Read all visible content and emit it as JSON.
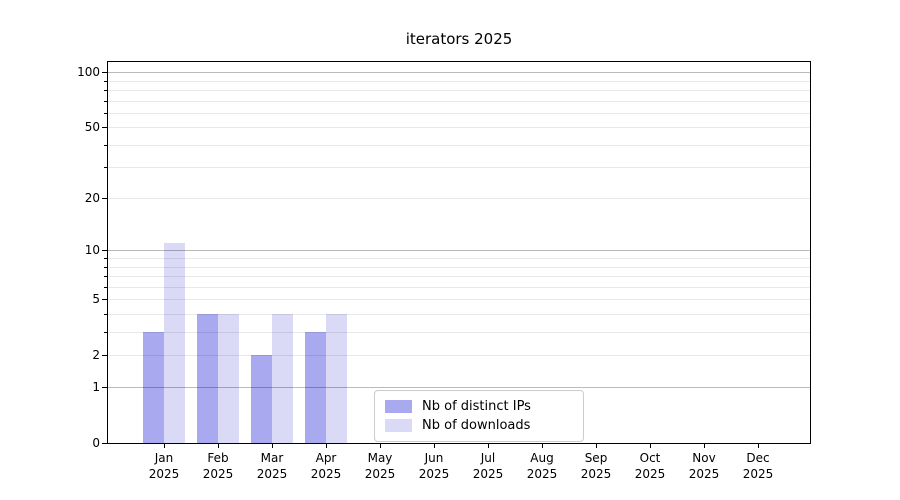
{
  "title": "iterators 2025",
  "legend": {
    "items": [
      {
        "label": "Nb of distinct IPs",
        "color": "#a9a9ef"
      },
      {
        "label": "Nb of downloads",
        "color": "#dadaf7"
      }
    ]
  },
  "chart_data": {
    "type": "bar",
    "title": "iterators 2025",
    "categories": [
      "Jan",
      "Feb",
      "Mar",
      "Apr",
      "May",
      "Jun",
      "Jul",
      "Aug",
      "Sep",
      "Oct",
      "Nov",
      "Dec"
    ],
    "year_label": "2025",
    "series": [
      {
        "name": "Nb of distinct IPs",
        "color": "#a9a9ef",
        "values": [
          3,
          4,
          2,
          3,
          0,
          0,
          0,
          0,
          0,
          0,
          0,
          0
        ]
      },
      {
        "name": "Nb of downloads",
        "color": "#dadaf7",
        "values": [
          11,
          4,
          4,
          4,
          0,
          0,
          0,
          0,
          0,
          0,
          0,
          0
        ]
      }
    ],
    "yscale": "log(1+x)",
    "y_ticks_labeled": [
      0,
      1,
      2,
      5,
      10,
      20,
      50,
      100
    ],
    "y_ticks_minor": [
      3,
      4,
      6,
      7,
      8,
      9,
      30,
      40,
      60,
      70,
      80,
      90
    ],
    "y_decade_gridlines": [
      1,
      10,
      100
    ],
    "ylim": [
      0,
      113
    ],
    "xlabel": "",
    "ylabel": "",
    "grid": "horizontal",
    "legend_position": "lower center-right"
  },
  "colors": {
    "bar_ips": "#a9a9ef",
    "bar_downloads": "#dadaf7",
    "grid_major": "#bbbbbb",
    "grid_minor": "#e8e8e8",
    "spine": "#000000",
    "background": "#ffffff"
  }
}
